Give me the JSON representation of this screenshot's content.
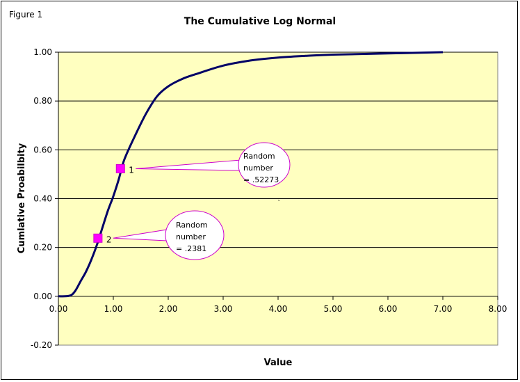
{
  "figure_label": "Figure 1",
  "chart_data": {
    "type": "line",
    "title": "The Cumulative Log Normal",
    "xlabel": "Value",
    "ylabel": "Cumlative Proabilbity",
    "xlim": [
      0,
      8
    ],
    "ylim": [
      -0.2,
      1.0
    ],
    "x_ticks": [
      "0.00",
      "1.00",
      "2.00",
      "3.00",
      "4.00",
      "5.00",
      "6.00",
      "7.00",
      "8.00"
    ],
    "y_ticks": [
      "-0.20",
      "0.00",
      "0.20",
      "0.40",
      "0.60",
      "0.80",
      "1.00"
    ],
    "gridlines_y": true,
    "plot_background": "#ffffc0",
    "line_color": "#000066",
    "marker_color": "#ff00ff",
    "series": [
      {
        "x": [
          0.0,
          0.2,
          0.3,
          0.4,
          0.5,
          0.6,
          0.7,
          0.8,
          0.9,
          1.0,
          1.1,
          1.2,
          1.4,
          1.6,
          1.8,
          2.0,
          2.25,
          2.5,
          3.0,
          3.5,
          4.0,
          4.5,
          5.0,
          6.0,
          7.0
        ],
        "y": [
          0.0,
          0.002,
          0.02,
          0.06,
          0.1,
          0.15,
          0.21,
          0.28,
          0.35,
          0.41,
          0.48,
          0.56,
          0.66,
          0.75,
          0.82,
          0.86,
          0.89,
          0.91,
          0.945,
          0.966,
          0.978,
          0.985,
          0.99,
          0.995,
          1.0
        ]
      }
    ],
    "points": [
      {
        "label": "1",
        "x": 1.13,
        "y": 0.52273
      },
      {
        "label": "2",
        "x": 0.72,
        "y": 0.2381
      }
    ],
    "annotations": [
      {
        "lines": [
          "Random",
          "number",
          "= .52273"
        ]
      },
      {
        "lines": [
          "Random",
          "number",
          "= .2381"
        ]
      }
    ],
    "stray_mark": "`"
  }
}
